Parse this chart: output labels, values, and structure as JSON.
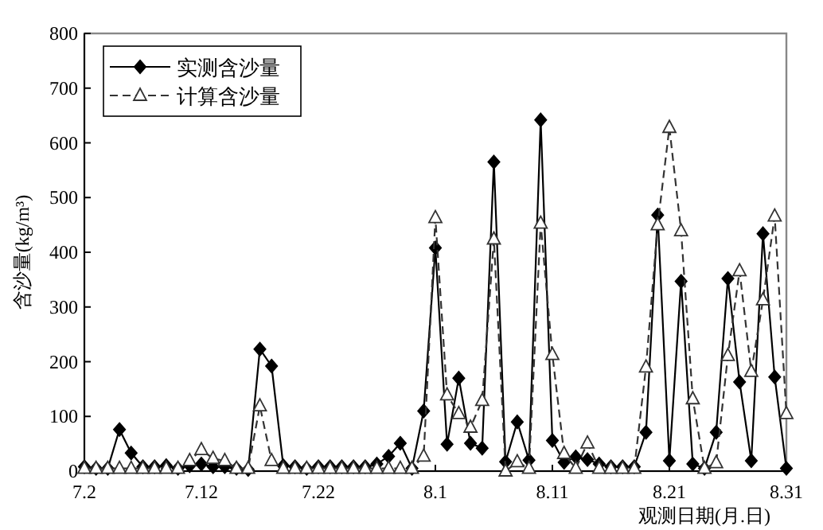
{
  "chart_data": {
    "type": "line",
    "xlabel": "观测日期(月.日)",
    "ylabel": "含沙量(kg/m³)",
    "categories": [
      "7.2",
      null,
      null,
      null,
      null,
      null,
      null,
      null,
      null,
      null,
      "7.12",
      null,
      null,
      null,
      null,
      null,
      null,
      null,
      null,
      null,
      "7.22",
      null,
      null,
      null,
      null,
      null,
      null,
      null,
      null,
      null,
      "8.1",
      null,
      null,
      null,
      null,
      null,
      null,
      null,
      null,
      null,
      "8.11",
      null,
      null,
      null,
      null,
      null,
      null,
      null,
      null,
      null,
      "8.21",
      null,
      null,
      null,
      null,
      null,
      null,
      null,
      null,
      null,
      "8.31"
    ],
    "ylim": [
      0,
      800
    ],
    "yticks": [
      0,
      100,
      200,
      300,
      400,
      500,
      600,
      700,
      800
    ],
    "legend": "top left",
    "series": [
      {
        "name": "实测含沙量",
        "color": "#000000",
        "marker": "diamond",
        "line_style": "solid",
        "values": [
          8,
          5,
          5,
          76,
          33,
          8,
          8,
          10,
          5,
          10,
          13,
          8,
          8,
          5,
          3,
          223,
          192,
          10,
          8,
          5,
          8,
          8,
          8,
          8,
          8,
          13,
          27,
          51,
          5,
          110,
          408,
          49,
          170,
          51,
          42,
          565,
          17,
          90,
          20,
          642,
          56,
          16,
          26,
          21,
          13,
          8,
          8,
          8,
          71,
          468,
          19,
          347,
          13,
          5,
          71,
          352,
          163,
          19,
          434,
          172,
          5
        ]
      },
      {
        "name": "计算含沙量",
        "color": "#333333",
        "marker": "triangle",
        "line_style": "dashed",
        "values": [
          5,
          5,
          5,
          5,
          5,
          5,
          5,
          5,
          5,
          19,
          39,
          23,
          19,
          5,
          5,
          119,
          19,
          5,
          5,
          5,
          5,
          5,
          5,
          5,
          5,
          5,
          5,
          5,
          5,
          27,
          463,
          139,
          105,
          80,
          129,
          424,
          0,
          17,
          5,
          453,
          213,
          32,
          5,
          51,
          5,
          5,
          5,
          5,
          190,
          450,
          628,
          439,
          132,
          5,
          15,
          211,
          366,
          182,
          313,
          466,
          105
        ]
      }
    ]
  }
}
